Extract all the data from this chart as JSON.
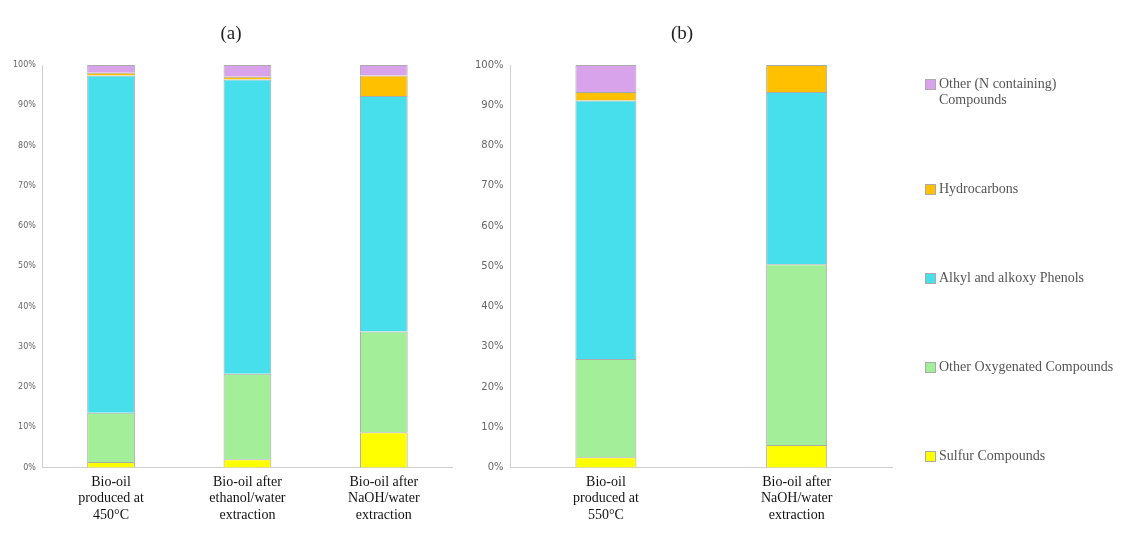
{
  "chart_data": [
    {
      "type": "bar",
      "title": "(a)",
      "stacked": true,
      "legend": false,
      "grid": false,
      "categories": [
        "Bio-oil produced at 450°C",
        "Bio-oil after ethanol/water extraction",
        "Bio-oil after NaOH/water extraction"
      ],
      "ylim": [
        0,
        100
      ],
      "yticks": [
        {
          "value": 0,
          "label": "0%"
        },
        {
          "value": 10,
          "label": "10%"
        },
        {
          "value": 20,
          "label": "20%"
        },
        {
          "value": 30,
          "label": "30%"
        },
        {
          "value": 40,
          "label": "40%"
        },
        {
          "value": 50,
          "label": "50%"
        },
        {
          "value": 60,
          "label": "60%"
        },
        {
          "value": 70,
          "label": "70%"
        },
        {
          "value": 80,
          "label": "80%"
        },
        {
          "value": 90,
          "label": "90%"
        },
        {
          "value": 100,
          "label": "100%"
        }
      ],
      "series": [
        {
          "color": "#ffff00",
          "values": [
            1.4,
            2.1,
            8.8
          ]
        },
        {
          "color": "#a3ee98",
          "values": [
            12.2,
            21.2,
            25.0
          ]
        },
        {
          "color": "#48dfec",
          "values": [
            83.8,
            73.1,
            58.5
          ]
        },
        {
          "color": "#ffc000",
          "values": [
            0.7,
            0.7,
            5.1
          ]
        },
        {
          "color": "#d9a3ec",
          "values": [
            1.9,
            2.9,
            2.6
          ]
        }
      ]
    },
    {
      "type": "bar",
      "title": "(b)",
      "stacked": true,
      "legend": "right",
      "grid": false,
      "categories": [
        "Bio-oil produced at 550°C",
        "Bio-oil after NaOH/water extraction"
      ],
      "ylim": [
        0,
        100
      ],
      "yticks": [
        {
          "value": 0,
          "label": "0%"
        },
        {
          "value": 10,
          "label": "10%"
        },
        {
          "value": 20,
          "label": "20%"
        },
        {
          "value": 30,
          "label": "30%"
        },
        {
          "value": 40,
          "label": "40%"
        },
        {
          "value": 50,
          "label": "50%"
        },
        {
          "value": 60,
          "label": "60%"
        },
        {
          "value": 70,
          "label": "70%"
        },
        {
          "value": 80,
          "label": "80%"
        },
        {
          "value": 90,
          "label": "90%"
        },
        {
          "value": 100,
          "label": "100%"
        }
      ],
      "series": [
        {
          "name": "Sulfur Compounds",
          "color": "#ffff00",
          "values": [
            2.6,
            5.6
          ]
        },
        {
          "name": "Other Oxygenated Compounds",
          "color": "#a3ee98",
          "values": [
            24.4,
            44.9
          ]
        },
        {
          "name": "Alkyl and alkoxy Phenols",
          "color": "#48dfec",
          "values": [
            64.2,
            42.8
          ]
        },
        {
          "name": "Hydrocarbons",
          "color": "#ffc000",
          "values": [
            2.1,
            6.7
          ]
        },
        {
          "name": "Other (N containing) Compounds",
          "color": "#d9a3ec",
          "values": [
            6.7,
            0
          ]
        }
      ]
    }
  ]
}
